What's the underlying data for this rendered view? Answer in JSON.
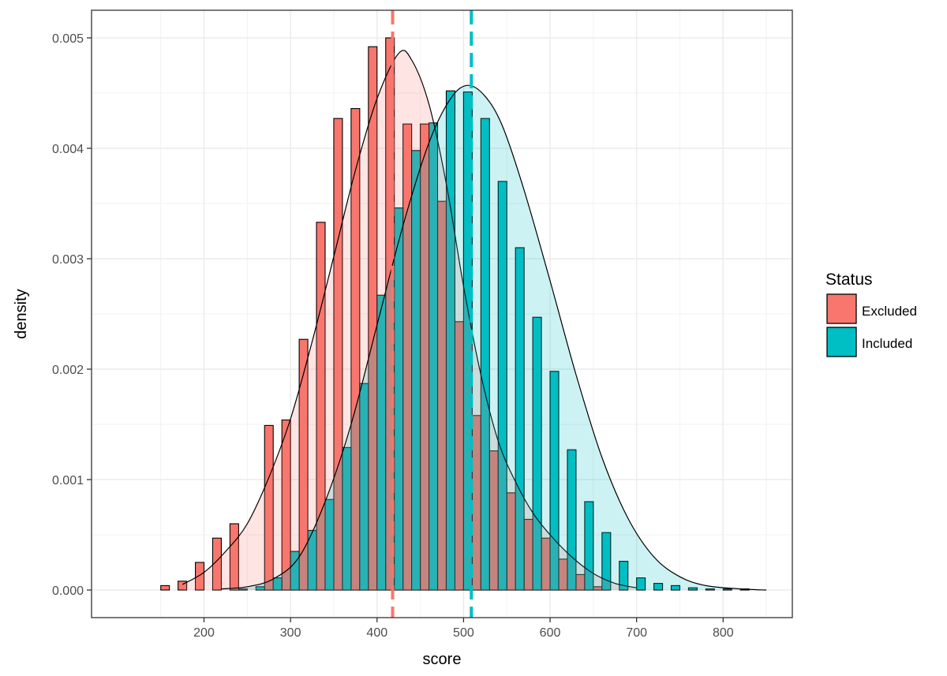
{
  "chart_data": {
    "type": "bar",
    "subtype": "overlaid-histogram-with-density",
    "xlabel": "score",
    "ylabel": "density",
    "xlim": [
      70,
      880
    ],
    "ylim": [
      -0.00025,
      0.00525
    ],
    "x_ticks": [
      200,
      300,
      400,
      500,
      600,
      700,
      800
    ],
    "y_ticks": [
      0.0,
      0.001,
      0.002,
      0.003,
      0.004,
      0.005
    ],
    "x_tick_labels": [
      "200",
      "300",
      "400",
      "500",
      "600",
      "700",
      "800"
    ],
    "y_tick_labels": [
      "0.000",
      "0.001",
      "0.002",
      "0.003",
      "0.004",
      "0.005"
    ],
    "grid": true,
    "legend": {
      "title": "Status",
      "placement": "right"
    },
    "bin_width": 20,
    "series": [
      {
        "name": "Excluded",
        "color": "#F8766D",
        "mean_line": 418,
        "histogram": [
          [
            160,
            4e-05
          ],
          [
            180,
            8e-05
          ],
          [
            200,
            0.00025
          ],
          [
            220,
            0.00047
          ],
          [
            240,
            0.0006
          ],
          [
            280,
            0.00149
          ],
          [
            300,
            0.00154
          ],
          [
            320,
            0.00227
          ],
          [
            340,
            0.00333
          ],
          [
            360,
            0.00427
          ],
          [
            380,
            0.00436
          ],
          [
            400,
            0.00492
          ],
          [
            420,
            0.005
          ],
          [
            440,
            0.00422
          ],
          [
            460,
            0.00422
          ],
          [
            480,
            0.00352
          ],
          [
            500,
            0.00243
          ],
          [
            520,
            0.00158
          ],
          [
            540,
            0.00126
          ],
          [
            560,
            0.00088
          ],
          [
            580,
            0.00064
          ],
          [
            600,
            0.00047
          ],
          [
            620,
            0.00028
          ],
          [
            640,
            0.00014
          ],
          [
            660,
            3e-05
          ]
        ],
        "density": [
          [
            175,
            5e-05
          ],
          [
            200,
            0.00016
          ],
          [
            225,
            0.00035
          ],
          [
            250,
            0.0006
          ],
          [
            275,
            0.00102
          ],
          [
            300,
            0.00155
          ],
          [
            325,
            0.00225
          ],
          [
            350,
            0.00302
          ],
          [
            375,
            0.0038
          ],
          [
            400,
            0.00445
          ],
          [
            425,
            0.00486
          ],
          [
            440,
            0.0048
          ],
          [
            460,
            0.0044
          ],
          [
            480,
            0.00368
          ],
          [
            500,
            0.00275
          ],
          [
            520,
            0.00195
          ],
          [
            540,
            0.00135
          ],
          [
            560,
            0.00098
          ],
          [
            580,
            0.0007
          ],
          [
            600,
            0.0005
          ],
          [
            625,
            0.0003
          ],
          [
            650,
            0.00015
          ],
          [
            675,
            6e-05
          ],
          [
            700,
            2e-05
          ]
        ]
      },
      {
        "name": "Included",
        "color": "#00BFC4",
        "mean_line": 509,
        "histogram": [
          [
            240,
            1e-05
          ],
          [
            260,
            3e-05
          ],
          [
            280,
            0.00011
          ],
          [
            300,
            0.00035
          ],
          [
            320,
            0.00054
          ],
          [
            340,
            0.00082
          ],
          [
            360,
            0.00129
          ],
          [
            380,
            0.00187
          ],
          [
            400,
            0.00267
          ],
          [
            420,
            0.00346
          ],
          [
            440,
            0.00398
          ],
          [
            460,
            0.00423
          ],
          [
            480,
            0.00452
          ],
          [
            500,
            0.00451
          ],
          [
            520,
            0.00427
          ],
          [
            540,
            0.0037
          ],
          [
            560,
            0.0031
          ],
          [
            580,
            0.00247
          ],
          [
            600,
            0.00198
          ],
          [
            620,
            0.00127
          ],
          [
            640,
            0.0008
          ],
          [
            660,
            0.00052
          ],
          [
            680,
            0.00026
          ],
          [
            700,
            0.00011
          ],
          [
            720,
            6e-05
          ],
          [
            740,
            4e-05
          ],
          [
            760,
            2e-05
          ],
          [
            780,
            1e-05
          ],
          [
            800,
            1e-05
          ],
          [
            820,
            1e-05
          ]
        ],
        "density": [
          [
            220,
            1e-05
          ],
          [
            250,
            3e-05
          ],
          [
            280,
            0.0001
          ],
          [
            310,
            0.0003
          ],
          [
            340,
            0.0008
          ],
          [
            370,
            0.0015
          ],
          [
            400,
            0.0024
          ],
          [
            430,
            0.0033
          ],
          [
            460,
            0.00405
          ],
          [
            485,
            0.00445
          ],
          [
            505,
            0.00457
          ],
          [
            525,
            0.00447
          ],
          [
            545,
            0.0042
          ],
          [
            570,
            0.00362
          ],
          [
            600,
            0.0028
          ],
          [
            630,
            0.00195
          ],
          [
            660,
            0.0012
          ],
          [
            690,
            0.00065
          ],
          [
            720,
            0.0003
          ],
          [
            750,
            0.00012
          ],
          [
            780,
            4e-05
          ],
          [
            820,
            1e-05
          ],
          [
            850,
            0.0
          ]
        ]
      }
    ]
  }
}
